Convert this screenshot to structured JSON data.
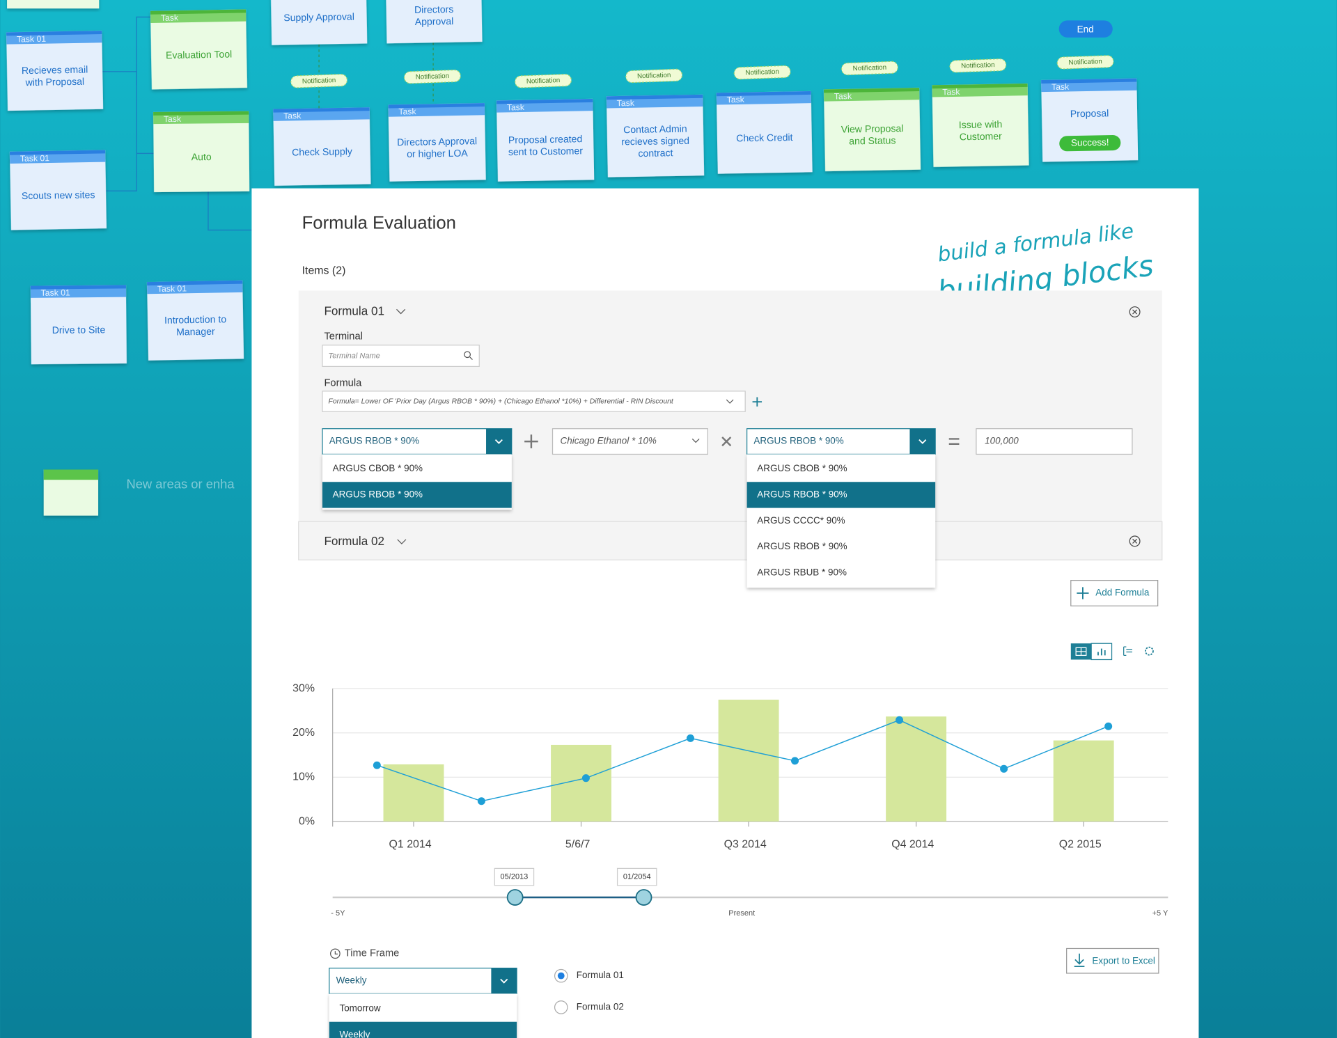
{
  "flow": {
    "cards": [
      {
        "tag": "Task 01",
        "lines": [
          "Recieves email",
          "with Proposal"
        ]
      },
      {
        "tag": "Task",
        "lines": [
          "Evaluation Tool"
        ]
      },
      {
        "tag": "Task",
        "lines": [
          "Auto"
        ]
      },
      {
        "tag": "Task 01",
        "lines": [
          "Scouts new sites"
        ]
      },
      {
        "tag": "Task 01",
        "lines": [
          "Drive to Site"
        ]
      },
      {
        "tag": "Task 01",
        "lines": [
          "Introduction to",
          "Manager"
        ]
      },
      {
        "tag": null,
        "lines": [
          "Supply Approval"
        ]
      },
      {
        "tag": null,
        "lines": [
          "Directors",
          "Approval"
        ]
      },
      {
        "tag": "Task",
        "lines": [
          "Check Supply"
        ]
      },
      {
        "tag": "Task",
        "lines": [
          "Directors Approval",
          "or higher LOA"
        ]
      },
      {
        "tag": "Task",
        "lines": [
          "Proposal created",
          "sent to Customer"
        ]
      },
      {
        "tag": "Task",
        "lines": [
          "Contact Admin",
          "recieves signed",
          "contract"
        ]
      },
      {
        "tag": "Task",
        "lines": [
          "Check Credit"
        ]
      },
      {
        "tag": "Task",
        "lines": [
          "View Proposal",
          "and Status"
        ]
      },
      {
        "tag": "Task",
        "lines": [
          "Issue with",
          "Customer"
        ]
      },
      {
        "tag": "Task",
        "lines": [
          "Proposal"
        ],
        "badge": "Success!"
      }
    ],
    "notifications": [
      "Notification",
      "Notification",
      "Notification",
      "Notification",
      "Notification",
      "Notification",
      "Notification",
      "Notification"
    ],
    "end": "End",
    "faded_note": "New areas or enha"
  },
  "panel": {
    "title": "Formula Evaluation",
    "items": "Items (2)",
    "annotation": [
      "build a formula like",
      "building blocks"
    ],
    "formula1": {
      "name": "Formula 01",
      "terminal_label": "Terminal",
      "terminal_placeholder": "Terminal Name",
      "formula_label": "Formula",
      "formula_text": "Formula= Lower OF 'Prior Day (Argus RBOB * 90%) + (Chicago Ethanol *10%) + Differential - RIN Discount",
      "select1": {
        "value": "ARGUS RBOB * 90%",
        "options": [
          "ARGUS CBOB * 90%",
          "ARGUS RBOB * 90%"
        ],
        "selected": 1
      },
      "select2": {
        "value": "Chicago Ethanol * 10%"
      },
      "select3": {
        "value": "ARGUS RBOB * 90%",
        "options": [
          "ARGUS CBOB * 90%",
          "ARGUS RBOB * 90%",
          "ARGUS CCCC* 90%",
          "ARGUS RBOB * 90%",
          "ARGUS RBUB * 90%"
        ],
        "selected": 1
      },
      "result": "100,000"
    },
    "formula2": {
      "name": "Formula 02"
    },
    "add_formula": "Add Formula",
    "slider": {
      "start": "05/2013",
      "end": "01/2054",
      "left": "- 5Y",
      "middle": "Present",
      "right": "+5 Y"
    },
    "time_frame": {
      "label": "Time Frame",
      "value": "Weekly",
      "options": [
        "Tomorrow",
        "Weekly"
      ],
      "selected": 1
    },
    "radios": {
      "options": [
        "Formula 01",
        "Formula 02"
      ],
      "checked": 0
    },
    "export": "Export to Excel"
  },
  "chart": {
    "type": "bar+line",
    "categories": [
      "Q1 2014",
      "5/6/7",
      "Q3 2014",
      "Q4 2014",
      "Q2 2015"
    ],
    "bar_color": "#d5e79c",
    "line_color": "#1e9fd6",
    "bars": [
      12.9,
      17.3,
      27.5,
      23.7,
      18.3
    ],
    "line": [
      12.7,
      4.6,
      9.8,
      18.8,
      13.7,
      22.9,
      11.9,
      21.5
    ],
    "ylim": [
      0,
      30
    ],
    "yticks": [
      {
        "value": 0,
        "label": "0%"
      },
      {
        "value": 10,
        "label": "10%"
      },
      {
        "value": 20,
        "label": "20%"
      },
      {
        "value": 30,
        "label": "30%"
      }
    ],
    "grid": true
  }
}
